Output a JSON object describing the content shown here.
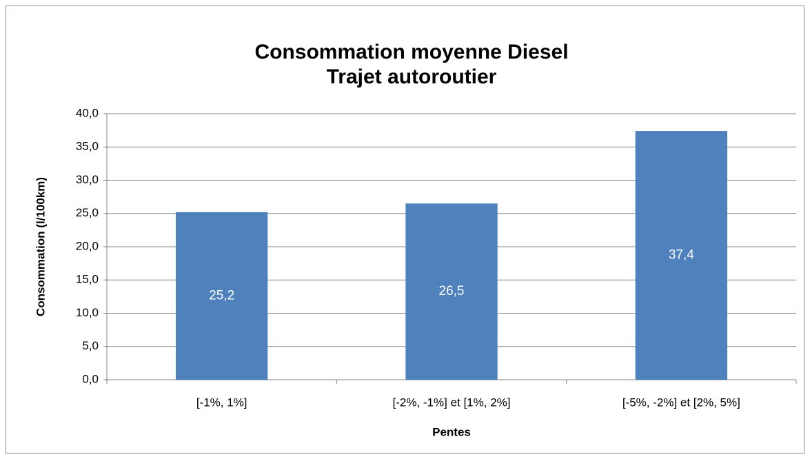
{
  "chart_data": {
    "type": "bar",
    "title": "Consommation moyenne Diesel",
    "subtitle": "Trajet autoroutier",
    "x_label": "Pentes",
    "y_label": "Consommation (l/100km)",
    "categories": [
      "[-1%, 1%]",
      "[-2%, -1%] et [1%, 2%]",
      "[-5%, -2%] et [2%, 5%]"
    ],
    "values": [
      25.2,
      26.5,
      37.4
    ],
    "value_labels": [
      "25,2",
      "26,5",
      "37,4"
    ],
    "color": "#4f81bd",
    "ylim": [
      0,
      40
    ],
    "yticks": [
      {
        "value": 0,
        "label": "0,0"
      },
      {
        "value": 5,
        "label": "5,0"
      },
      {
        "value": 10,
        "label": "10,0"
      },
      {
        "value": 15,
        "label": "15,0"
      },
      {
        "value": 20,
        "label": "20,0"
      },
      {
        "value": 25,
        "label": "25,0"
      },
      {
        "value": 30,
        "label": "30,0"
      },
      {
        "value": 35,
        "label": "35,0"
      },
      {
        "value": 40,
        "label": "40,0"
      }
    ],
    "grid": true
  }
}
